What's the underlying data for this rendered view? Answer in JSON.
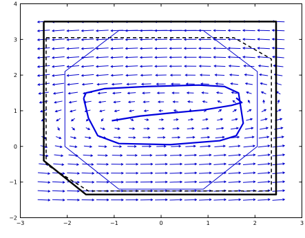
{
  "chart_data": {
    "type": "line",
    "title": "",
    "xlabel": "",
    "ylabel": "",
    "xlim": [
      -3,
      3
    ],
    "ylim": [
      -2,
      4
    ],
    "grid": false,
    "xticks": [
      -3,
      -2,
      -1,
      0,
      1,
      2,
      3
    ],
    "yticks": [
      -2,
      -1,
      0,
      1,
      2,
      3,
      4
    ],
    "xtick_labels": [
      "−3",
      "−2",
      "−1",
      "0",
      "1",
      "2",
      "3"
    ],
    "ytick_labels": [
      "−2",
      "−1",
      "0",
      "1",
      "2",
      "3",
      "4"
    ],
    "colors": {
      "axes": "#000000",
      "vector_field": "#0000cc",
      "trajectory": "#0000dd",
      "octagon": "#0000cc",
      "black_set": "#000000"
    },
    "series": [
      {
        "style": "black-solid-thick",
        "x": [
          -2.5,
          2.45,
          2.45,
          -1.6,
          -2.5,
          -2.5
        ],
        "y": [
          3.5,
          3.5,
          -1.35,
          -1.35,
          -0.4,
          3.5
        ]
      },
      {
        "style": "black-dashed",
        "x": [
          -2.45,
          1.55,
          2.35,
          2.35,
          -1.55,
          -2.45,
          -2.45
        ],
        "y": [
          3.05,
          3.05,
          2.45,
          -1.25,
          -1.25,
          -0.5,
          3.05
        ]
      },
      {
        "style": "blue-thin-octagon",
        "x": [
          -0.9,
          0.9,
          2.05,
          2.05,
          0.9,
          -0.9,
          -2.05,
          -2.05,
          -0.9
        ],
        "y": [
          3.25,
          3.25,
          2.1,
          0.0,
          -1.2,
          -1.2,
          0.0,
          2.1,
          3.25
        ]
      },
      {
        "style": "blue-thick-limit-cycle",
        "x": [
          -1.65,
          -1.6,
          -1.2,
          -0.3,
          0.8,
          1.35,
          1.65,
          1.75,
          1.6,
          1.25,
          0.2,
          -0.9,
          -1.35,
          -1.55,
          -1.65
        ],
        "y": [
          1.35,
          1.5,
          1.62,
          1.68,
          1.72,
          1.68,
          1.5,
          0.65,
          0.3,
          0.16,
          0.05,
          0.08,
          0.3,
          0.8,
          1.35
        ]
      },
      {
        "style": "blue-thick-inner-arc",
        "x": [
          -1.05,
          -0.45,
          0.15,
          0.9,
          1.5,
          1.72,
          1.6
        ],
        "y": [
          0.72,
          0.85,
          0.93,
          1.02,
          1.15,
          1.23,
          1.36
        ]
      }
    ],
    "vector_field": {
      "x_range": [
        -2.5,
        2.5
      ],
      "y_range": [
        -1.5,
        3.5
      ],
      "rows": 21,
      "cols": 17
    }
  }
}
